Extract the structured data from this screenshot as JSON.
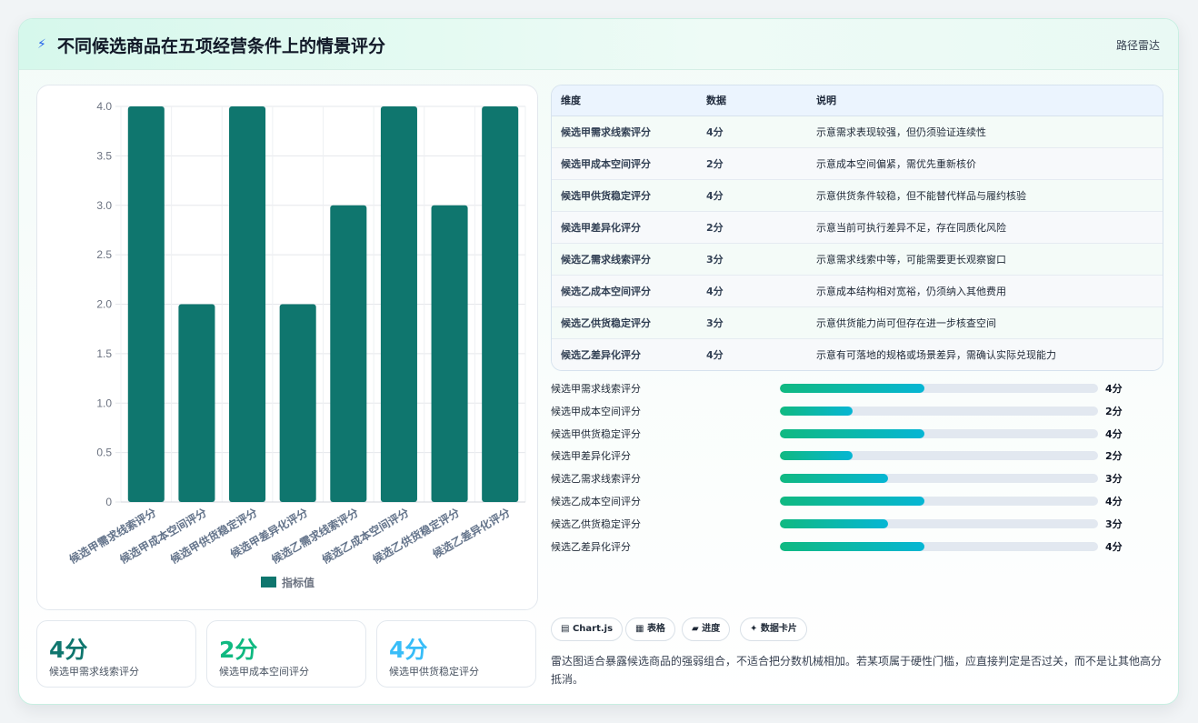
{
  "header": {
    "icon": "lightning-icon",
    "title": "不同候选商品在五项经营条件上的情景评分",
    "tag": "路径雷达"
  },
  "chart_data": {
    "type": "bar",
    "categories": [
      "候选甲需求线索评分",
      "候选甲成本空间评分",
      "候选甲供货稳定评分",
      "候选甲差异化评分",
      "候选乙需求线索评分",
      "候选乙成本空间评分",
      "候选乙供货稳定评分",
      "候选乙差异化评分"
    ],
    "series": [
      {
        "name": "指标值",
        "values": [
          4,
          2,
          4,
          2,
          3,
          4,
          3,
          4
        ]
      }
    ],
    "yticks": [
      "0",
      "0.5",
      "1.0",
      "1.5",
      "2.0",
      "2.5",
      "3.0",
      "3.5",
      "4.0"
    ],
    "ylim": [
      0,
      4
    ],
    "grid": true,
    "legend": "bottom",
    "bar_color": "#0f766e"
  },
  "kpis": [
    {
      "value": "4分",
      "label": "候选甲需求线索评分",
      "color": "#0f766e"
    },
    {
      "value": "2分",
      "label": "候选甲成本空间评分",
      "color": "#10b981"
    },
    {
      "value": "4分",
      "label": "候选甲供货稳定评分",
      "color": "#38bdf8"
    }
  ],
  "table": {
    "headers": [
      "维度",
      "数据",
      "说明"
    ],
    "rows": [
      [
        "候选甲需求线索评分",
        "4分",
        "示意需求表现较强，但仍须验证连续性"
      ],
      [
        "候选甲成本空间评分",
        "2分",
        "示意成本空间偏紧，需优先重新核价"
      ],
      [
        "候选甲供货稳定评分",
        "4分",
        "示意供货条件较稳，但不能替代样品与履约核验"
      ],
      [
        "候选甲差异化评分",
        "2分",
        "示意当前可执行差异不足，存在同质化风险"
      ],
      [
        "候选乙需求线索评分",
        "3分",
        "示意需求线索中等，可能需要更长观察窗口"
      ],
      [
        "候选乙成本空间评分",
        "4分",
        "示意成本结构相对宽裕，仍须纳入其他费用"
      ],
      [
        "候选乙供货稳定评分",
        "3分",
        "示意供货能力尚可但存在进一步核查空间"
      ],
      [
        "候选乙差异化评分",
        "4分",
        "示意有可落地的规格或场景差异，需确认实际兑现能力"
      ]
    ]
  },
  "progress": [
    {
      "label": "候选甲需求线索评分",
      "value": "4分",
      "fraction": 0.4545
    },
    {
      "label": "候选甲成本空间评分",
      "value": "2分",
      "fraction": 0.2273
    },
    {
      "label": "候选甲供货稳定评分",
      "value": "4分",
      "fraction": 0.4545
    },
    {
      "label": "候选甲差异化评分",
      "value": "2分",
      "fraction": 0.2273
    },
    {
      "label": "候选乙需求线索评分",
      "value": "3分",
      "fraction": 0.3409
    },
    {
      "label": "候选乙成本空间评分",
      "value": "4分",
      "fraction": 0.4545
    },
    {
      "label": "候选乙供货稳定评分",
      "value": "3分",
      "fraction": 0.3409
    },
    {
      "label": "候选乙差异化评分",
      "value": "4分",
      "fraction": 0.4545
    }
  ],
  "chips": [
    {
      "icon": "chart-icon",
      "glyph": "▤",
      "label": "Chart.js"
    },
    {
      "icon": "table-icon",
      "glyph": "▦",
      "label": "表格"
    },
    {
      "icon": "progress-icon",
      "glyph": "▰",
      "label": "进度"
    },
    {
      "icon": "sparkle-icon",
      "glyph": "✦",
      "label": "数据卡片"
    }
  ],
  "note": "雷达图适合暴露候选商品的强弱组合，不适合把分数机械相加。若某项属于硬性门槛，应直接判定是否过关，而不是让其他高分抵消。"
}
